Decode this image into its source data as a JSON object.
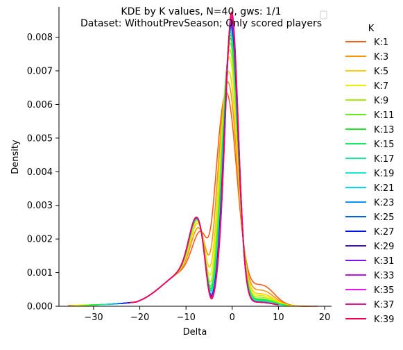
{
  "chart_data": {
    "type": "line",
    "title_lines": [
      "KDE by K values, N=40, gws: 1/1",
      "Dataset: WithoutPrevSeason; Only scored players"
    ],
    "xlabel": "Delta",
    "ylabel": "Density",
    "xlim": [
      -37.5,
      21.5
    ],
    "ylim": [
      0,
      0.0089
    ],
    "x_ticks": [
      -30,
      -20,
      -10,
      0,
      10,
      20
    ],
    "y_ticks": [
      0.0,
      0.001,
      0.002,
      0.003,
      0.004,
      0.005,
      0.006,
      0.007,
      0.008
    ],
    "y_tick_labels": [
      "0.000",
      "0.001",
      "0.002",
      "0.003",
      "0.004",
      "0.005",
      "0.006",
      "0.007",
      "0.008"
    ],
    "x_tick_labels": [
      "−30",
      "−20",
      "−10",
      "0",
      "10",
      "20"
    ],
    "grid": false,
    "legend_title": "K",
    "legend_placement": "right, outside plot",
    "series": [
      {
        "name": "K:1",
        "color": "#ff5b14",
        "peak": 0.006,
        "peak_x": -1.2,
        "sd_core": 2.25,
        "shoulder": 0.00112,
        "shoulder_x": -7.0,
        "right_tail": 0.0006,
        "x_start": -35.5,
        "x_end": 18.5
      },
      {
        "name": "K:3",
        "color": "#ff9300",
        "peak": 0.00635,
        "peak_x": -0.9,
        "sd_core": 2.05,
        "shoulder": 0.00135,
        "shoulder_x": -7.2,
        "right_tail": 0.00045,
        "x_start": -35.5,
        "x_end": 16.0
      },
      {
        "name": "K:5",
        "color": "#ffd000",
        "peak": 0.00668,
        "peak_x": -0.7,
        "sd_core": 1.9,
        "shoulder": 0.0015,
        "shoulder_x": -7.3,
        "right_tail": 0.00035,
        "x_start": -35,
        "x_end": 14.0
      },
      {
        "name": "K:7",
        "color": "#e8f000",
        "peak": 0.00712,
        "peak_x": -0.6,
        "sd_core": 1.8,
        "shoulder": 0.00155,
        "shoulder_x": -7.4,
        "right_tail": 0.0003,
        "x_start": -34,
        "x_end": 13.0
      },
      {
        "name": "K:9",
        "color": "#a8f000",
        "peak": 0.00735,
        "peak_x": -0.5,
        "sd_core": 1.72,
        "shoulder": 0.0016,
        "shoulder_x": -7.5,
        "right_tail": 0.00025,
        "x_start": -33,
        "x_end": 12.5
      },
      {
        "name": "K:11",
        "color": "#60f020",
        "peak": 0.00755,
        "peak_x": -0.4,
        "sd_core": 1.66,
        "shoulder": 0.0016,
        "shoulder_x": -7.5,
        "right_tail": 0.0002,
        "x_start": -32,
        "x_end": 12.0
      },
      {
        "name": "K:13",
        "color": "#20e820",
        "peak": 0.0077,
        "peak_x": -0.35,
        "sd_core": 1.62,
        "shoulder": 0.00162,
        "shoulder_x": -7.5,
        "right_tail": 0.00018,
        "x_start": -31,
        "x_end": 11.5
      },
      {
        "name": "K:15",
        "color": "#10ee60",
        "peak": 0.0078,
        "peak_x": -0.3,
        "sd_core": 1.59,
        "shoulder": 0.00163,
        "shoulder_x": -7.5,
        "right_tail": 0.00016,
        "x_start": -30,
        "x_end": 11.0
      },
      {
        "name": "K:17",
        "color": "#18e890",
        "peak": 0.00788,
        "peak_x": -0.3,
        "sd_core": 1.56,
        "shoulder": 0.00163,
        "shoulder_x": -7.5,
        "right_tail": 0.00014,
        "x_start": -29,
        "x_end": 11.0
      },
      {
        "name": "K:19",
        "color": "#10f0d0",
        "peak": 0.00795,
        "peak_x": -0.25,
        "sd_core": 1.54,
        "shoulder": 0.00164,
        "shoulder_x": -7.6,
        "right_tail": 0.00013,
        "x_start": -28,
        "x_end": 10.5
      },
      {
        "name": "K:21",
        "color": "#00d8f0",
        "peak": 0.008,
        "peak_x": -0.25,
        "sd_core": 1.52,
        "shoulder": 0.00164,
        "shoulder_x": -7.6,
        "right_tail": 0.00012,
        "x_start": -27,
        "x_end": 10.5
      },
      {
        "name": "K:23",
        "color": "#0098ff",
        "peak": 0.00805,
        "peak_x": -0.2,
        "sd_core": 1.5,
        "shoulder": 0.00165,
        "shoulder_x": -7.6,
        "right_tail": 0.00011,
        "x_start": -26,
        "x_end": 10.0
      },
      {
        "name": "K:25",
        "color": "#0060e0",
        "peak": 0.0081,
        "peak_x": -0.2,
        "sd_core": 1.49,
        "shoulder": 0.00165,
        "shoulder_x": -7.6,
        "right_tail": 0.0001,
        "x_start": -25,
        "x_end": 10.0
      },
      {
        "name": "K:27",
        "color": "#0010f0",
        "peak": 0.00815,
        "peak_x": -0.2,
        "sd_core": 1.48,
        "shoulder": 0.00165,
        "shoulder_x": -7.6,
        "right_tail": 0.0001,
        "x_start": -24,
        "x_end": 10.0
      },
      {
        "name": "K:29",
        "color": "#4010d0",
        "peak": 0.0082,
        "peak_x": -0.15,
        "sd_core": 1.47,
        "shoulder": 0.00166,
        "shoulder_x": -7.6,
        "right_tail": 0.0001,
        "x_start": -23,
        "x_end": 10.0
      },
      {
        "name": "K:31",
        "color": "#8010f0",
        "peak": 0.00825,
        "peak_x": -0.15,
        "sd_core": 1.46,
        "shoulder": 0.00166,
        "shoulder_x": -7.6,
        "right_tail": 0.0001,
        "x_start": -22,
        "x_end": 10.0
      },
      {
        "name": "K:33",
        "color": "#c010f0",
        "peak": 0.0083,
        "peak_x": -0.15,
        "sd_core": 1.45,
        "shoulder": 0.00166,
        "shoulder_x": -7.6,
        "right_tail": 0.0001,
        "x_start": -22,
        "x_end": 10.0
      },
      {
        "name": "K:35",
        "color": "#f010f0",
        "peak": 0.00835,
        "peak_x": -0.1,
        "sd_core": 1.44,
        "shoulder": 0.00166,
        "shoulder_x": -7.6,
        "right_tail": 0.0001,
        "x_start": -22,
        "x_end": 10.0
      },
      {
        "name": "K:37",
        "color": "#f01090",
        "peak": 0.0084,
        "peak_x": -0.1,
        "sd_core": 1.43,
        "shoulder": 0.00167,
        "shoulder_x": -7.6,
        "right_tail": 0.0001,
        "x_start": -22,
        "x_end": 10.0
      },
      {
        "name": "K:39",
        "color": "#ff0050",
        "peak": 0.0085,
        "peak_x": -0.1,
        "sd_core": 1.42,
        "shoulder": 0.00167,
        "shoulder_x": -7.6,
        "right_tail": 0.0001,
        "x_start": -22,
        "x_end": 10.0
      }
    ]
  }
}
